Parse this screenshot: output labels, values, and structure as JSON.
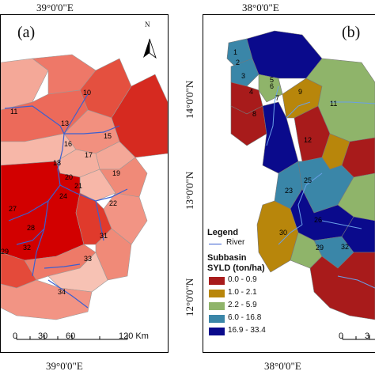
{
  "left_panel": {
    "label": "(a)",
    "top_coord": "39°0'0\"E",
    "bottom_coord": "39°0'0\"E",
    "north_letter": "N",
    "scale_labels": [
      "0",
      "30",
      "60",
      "120 Km"
    ],
    "subbasin_ids": [
      "10",
      "11",
      "13",
      "15",
      "16",
      "17",
      "18",
      "19",
      "20",
      "21",
      "22",
      "24",
      "27",
      "28",
      "29",
      "31",
      "32",
      "33",
      "34"
    ]
  },
  "right_panel": {
    "label": "(b)",
    "top_coord": "38°0'0\"E",
    "bottom_coord": "38°0'0\"E",
    "lat_labels": [
      "14°0'0\"N",
      "13°0'0\"N",
      "12°0'0\"N"
    ],
    "subbasin_ids": [
      "1",
      "2",
      "3",
      "4",
      "5",
      "6",
      "7",
      "8",
      "9",
      "11",
      "12",
      "23",
      "25",
      "26",
      "29",
      "30",
      "32"
    ],
    "scale_labels": [
      "0",
      "3"
    ]
  },
  "legend": {
    "title": "Legend",
    "river_label": "River",
    "subbasin_title": "Subbasin",
    "syld_title": "SYLD (ton/ha)",
    "classes": [
      {
        "label": "0.0 - 0.9",
        "color": "#a81b1b"
      },
      {
        "label": "1.0 - 2.1",
        "color": "#b8860b"
      },
      {
        "label": "2.2 - 5.9",
        "color": "#8fb46a"
      },
      {
        "label": "6.0 - 16.8",
        "color": "#3a86a8"
      },
      {
        "label": "16.9 - 33.4",
        "color": "#0a0a8c"
      }
    ]
  },
  "colors": {
    "river": "#3b5fd0",
    "dark_red": "#cc0000",
    "mid_red": "#e8483a",
    "light_red": "#f08070",
    "pale_red": "#f7b7a8"
  }
}
